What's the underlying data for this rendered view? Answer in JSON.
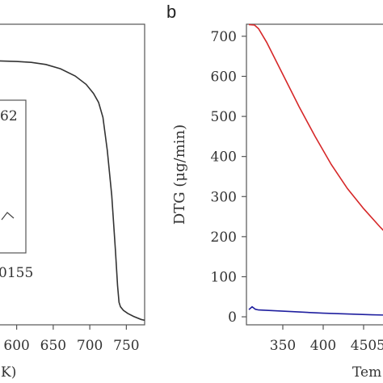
{
  "chart_data": [
    {
      "type": "line",
      "panel_label": "",
      "xlabel": "K)",
      "ylabel": "",
      "xlim": [
        575,
        775
      ],
      "ylim": [
        0,
        1
      ],
      "x_ticks": [
        "600",
        "650",
        "700",
        "750"
      ],
      "series": [
        {
          "color": "#333333",
          "x": [
            575,
            600,
            620,
            640,
            660,
            680,
            695,
            705,
            712,
            718,
            724,
            730,
            735,
            738,
            740,
            742,
            746,
            752,
            760,
            770,
            775
          ],
          "y": [
            0.878,
            0.876,
            0.873,
            0.866,
            0.852,
            0.828,
            0.8,
            0.77,
            0.74,
            0.69,
            0.58,
            0.43,
            0.25,
            0.13,
            0.075,
            0.06,
            0.048,
            0.038,
            0.028,
            0.018,
            0.015
          ]
        }
      ],
      "inset": {
        "labels": [
          "62",
          "0155"
        ]
      }
    },
    {
      "type": "line",
      "panel_label": "b",
      "xlabel": "Tem",
      "ylabel": "DTG (μg/min)",
      "ylabel_color": "#00008b",
      "xlim": [
        305,
        485
      ],
      "ylim": [
        -20,
        730
      ],
      "y_ticks": [
        "0",
        "100",
        "200",
        "300",
        "400",
        "500",
        "600",
        "700"
      ],
      "x_ticks": [
        "350",
        "400",
        "450",
        "5"
      ],
      "series": [
        {
          "color": "#d62728",
          "x": [
            308,
            315,
            320,
            330,
            350,
            370,
            390,
            410,
            430,
            450,
            470,
            478
          ],
          "y": [
            729,
            728,
            719,
            685,
            605,
            525,
            450,
            380,
            320,
            270,
            225,
            208
          ]
        },
        {
          "color": "#1f1f9f",
          "x": [
            308,
            312,
            316,
            320,
            340,
            370,
            400,
            430,
            460,
            485
          ],
          "y": [
            18,
            25,
            19,
            17,
            15,
            12,
            9,
            7,
            5,
            4
          ]
        }
      ]
    }
  ]
}
